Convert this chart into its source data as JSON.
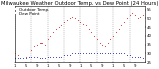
{
  "title": "Milwaukee Weather Outdoor Temp. vs Dew Point (24 Hours)",
  "legend_temp": "Outdoor Temp.",
  "legend_dew": "Dew Point",
  "background_color": "#ffffff",
  "temp_color": "#cc0000",
  "dew_color": "#0000bb",
  "black_color": "#000000",
  "grid_color": "#888888",
  "title_color": "#000000",
  "title_fontsize": 3.8,
  "legend_fontsize": 3.0,
  "tick_fontsize": 2.8,
  "ylim": [
    25,
    57
  ],
  "yticks": [
    25,
    30,
    35,
    40,
    45,
    50,
    55
  ],
  "xlim": [
    0,
    95
  ],
  "temp_x": [
    0,
    2,
    8,
    12,
    14,
    16,
    18,
    19,
    20,
    22,
    24,
    26,
    28,
    30,
    32,
    34,
    36,
    38,
    40,
    42,
    44,
    46,
    48,
    50,
    52,
    54,
    56,
    58,
    60,
    62,
    64,
    66,
    68,
    70,
    72,
    74,
    76,
    78,
    80,
    82,
    84,
    86,
    88,
    90,
    92,
    94
  ],
  "temp_y": [
    30,
    29,
    28,
    32,
    34,
    35,
    36,
    36,
    36,
    35,
    38,
    40,
    42,
    44,
    45,
    46,
    48,
    49,
    50,
    51,
    50,
    49,
    48,
    47,
    46,
    44,
    42,
    40,
    38,
    36,
    35,
    34,
    36,
    38,
    40,
    42,
    44,
    46,
    48,
    50,
    52,
    53,
    52,
    50,
    51,
    52
  ],
  "dew_x": [
    0,
    2,
    4,
    6,
    8,
    10,
    12,
    14,
    16,
    18,
    20,
    22,
    24,
    26,
    28,
    30,
    32,
    34,
    36,
    38,
    40,
    42,
    44,
    46,
    48,
    50,
    52,
    54,
    56,
    58,
    60,
    62,
    64,
    66,
    68,
    70,
    72,
    74,
    76,
    78,
    80,
    82,
    84,
    86,
    88,
    90,
    92,
    94
  ],
  "dew_y": [
    27,
    27,
    27,
    27,
    27,
    28,
    28,
    28,
    28,
    27,
    27,
    27,
    28,
    28,
    28,
    28,
    28,
    28,
    29,
    29,
    29,
    30,
    30,
    30,
    30,
    30,
    30,
    30,
    30,
    30,
    30,
    30,
    30,
    30,
    30,
    30,
    30,
    30,
    30,
    30,
    30,
    29,
    29,
    28,
    28,
    28,
    28,
    27
  ],
  "vgrid_x": [
    0,
    12,
    24,
    36,
    48,
    60,
    72,
    84,
    96
  ],
  "xtick_positions": [
    0,
    4,
    8,
    12,
    16,
    20,
    24,
    28,
    32,
    36,
    40,
    44,
    48,
    52,
    56,
    60,
    64,
    68,
    72,
    76,
    80,
    84,
    88,
    92
  ],
  "xtick_labels": [
    "1",
    "3",
    "5",
    "7",
    "9",
    "11",
    "1",
    "3",
    "5",
    "7",
    "9",
    "11",
    "1",
    "3",
    "5",
    "7",
    "9",
    "11",
    "1",
    "3",
    "5",
    "7",
    "9",
    "11"
  ]
}
